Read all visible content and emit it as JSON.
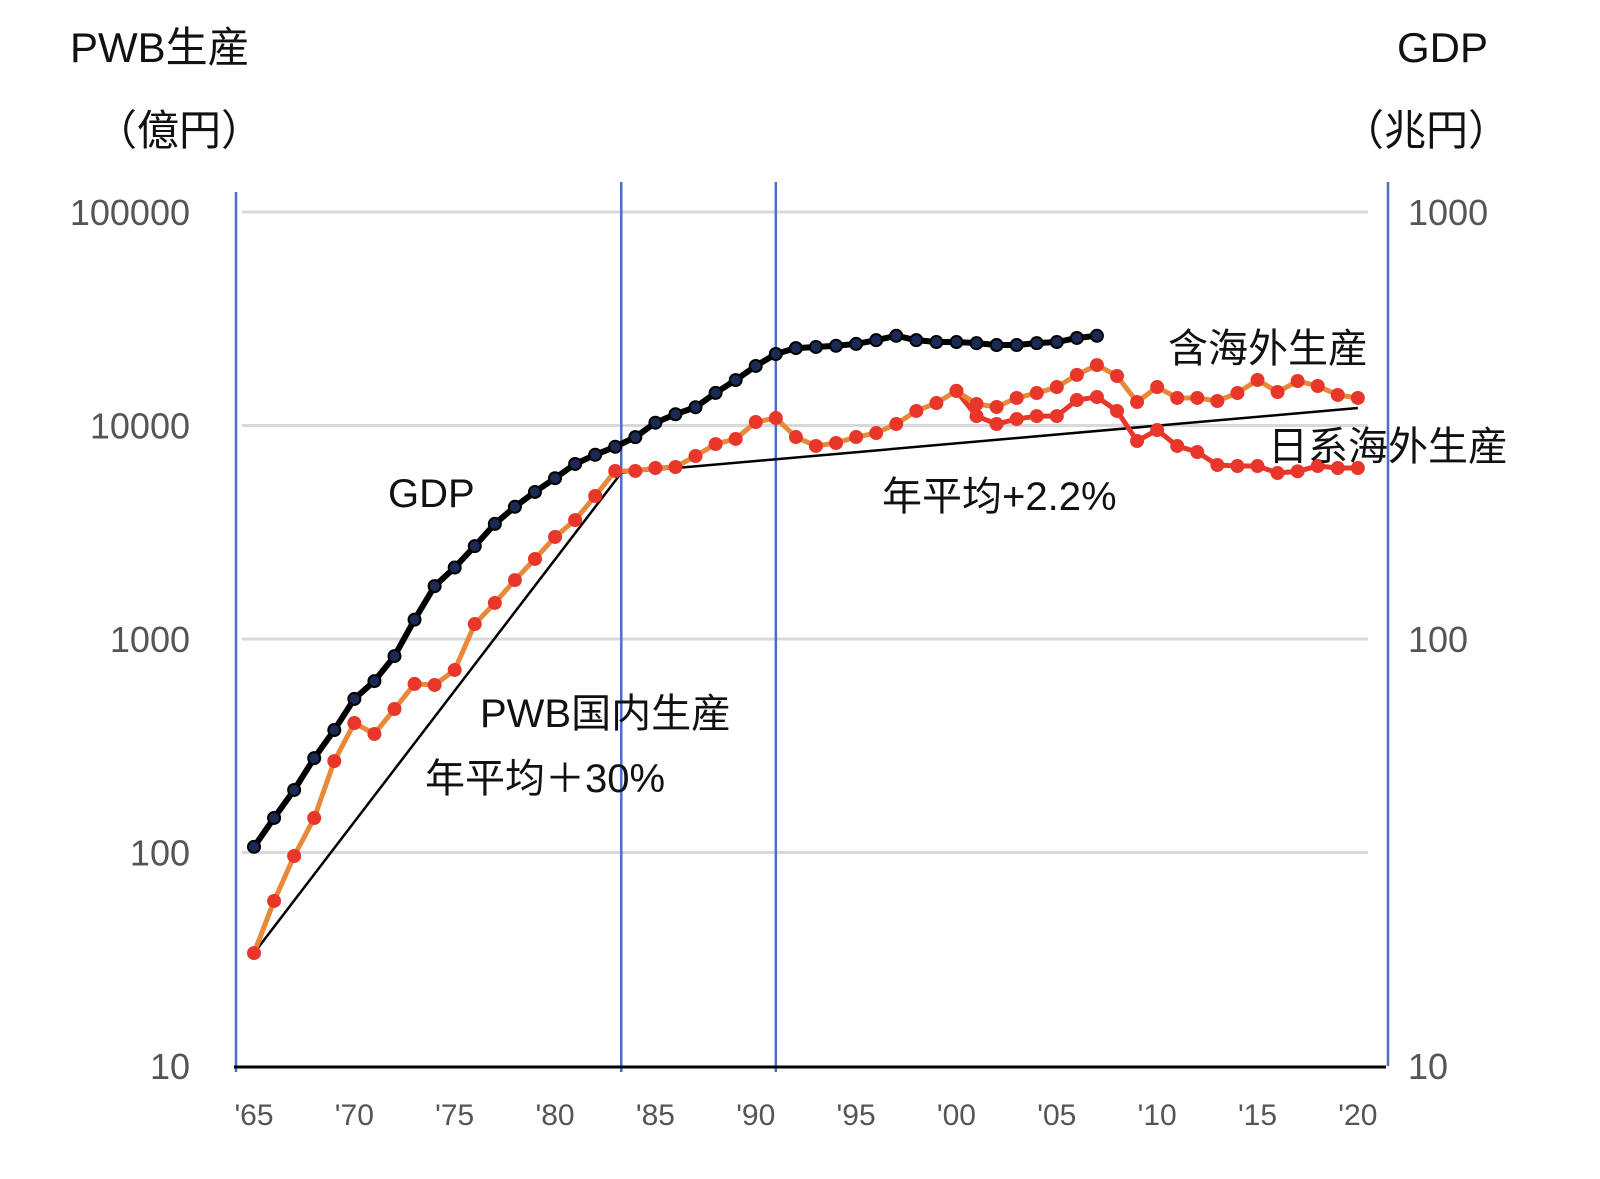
{
  "chart_data": {
    "type": "line",
    "title": "",
    "left_axis": {
      "label_line1": "PWB生産",
      "label_line2": "（億円）",
      "scale": "log",
      "range": [
        10,
        100000
      ],
      "ticks": [
        "100000",
        "10000",
        "1000",
        "100",
        "10"
      ]
    },
    "right_axis": {
      "label_line1": "GDP",
      "label_line2": "（兆円）",
      "scale": "log",
      "range": [
        10,
        1000
      ],
      "ticks": [
        "1000",
        "100",
        "10"
      ]
    },
    "x_axis": {
      "range": [
        1965,
        2020
      ],
      "ticks": [
        "'65",
        "'70",
        "'75",
        "'80",
        "'85",
        "'90",
        "'95",
        "'00",
        "'05",
        "'10",
        "'15",
        "'20"
      ],
      "tick_years": [
        1965,
        1970,
        1975,
        1980,
        1985,
        1990,
        1995,
        2000,
        2005,
        2010,
        2015,
        2020
      ]
    },
    "grid": true,
    "vertical_markers": [
      1983.3,
      1991
    ],
    "series": [
      {
        "name": "GDP",
        "axis": "right",
        "color": "#000000",
        "marker_color": "#1a2a55",
        "x": [
          1965,
          1966,
          1967,
          1968,
          1969,
          1970,
          1971,
          1972,
          1973,
          1974,
          1975,
          1976,
          1977,
          1978,
          1979,
          1980,
          1981,
          1982,
          1983,
          1984,
          1985,
          1986,
          1987,
          1988,
          1989,
          1990,
          1991,
          1992,
          1993,
          1994,
          1995,
          1996,
          1997,
          1998,
          1999,
          2000,
          2001,
          2002,
          2003,
          2004,
          2005,
          2006,
          2007
        ],
        "values": [
          32.6,
          38.1,
          44.3,
          52.6,
          61.2,
          72.4,
          79.7,
          91.2,
          111,
          133,
          147,
          165,
          186,
          204,
          221,
          238,
          257,
          270,
          282,
          297,
          321,
          336,
          349,
          377,
          404,
          436,
          465,
          480,
          483,
          486,
          491,
          501,
          513,
          501,
          496,
          496,
          493,
          488,
          488,
          493,
          496,
          507,
          513
        ]
      },
      {
        "name": "含海外生産",
        "axis": "left",
        "color": "#e8893a",
        "marker_color": "#e8372a",
        "x": [
          1965,
          1966,
          1967,
          1968,
          1969,
          1970,
          1971,
          1972,
          1973,
          1974,
          1975,
          1976,
          1977,
          1978,
          1979,
          1980,
          1981,
          1982,
          1983,
          1984,
          1985,
          1986,
          1987,
          1988,
          1989,
          1990,
          1991,
          1992,
          1993,
          1994,
          1995,
          1996,
          1997,
          1998,
          1999,
          2000,
          2001,
          2002,
          2003,
          2004,
          2005,
          2006,
          2007,
          2008,
          2009,
          2010,
          2011,
          2012,
          2013,
          2014,
          2015,
          2016,
          2017,
          2018,
          2019,
          2020
        ],
        "values": [
          33.8,
          59.3,
          96.3,
          145,
          268,
          404,
          359,
          470,
          616,
          609,
          716,
          1175,
          1475,
          1888,
          2371,
          3006,
          3606,
          4677,
          6124,
          6124,
          6324,
          6392,
          7194,
          8185,
          8650,
          10380,
          10840,
          8830,
          8020,
          8280,
          8830,
          9220,
          10160,
          11700,
          12740,
          14520,
          12610,
          12210,
          13460,
          14190,
          15140,
          17260,
          19190,
          17060,
          12880,
          15140,
          13460,
          13460,
          13020,
          14190,
          16340,
          14350,
          16150,
          15310,
          13900,
          13460
        ]
      },
      {
        "name": "日系海外生産",
        "axis": "left",
        "color": "#e8372a",
        "marker_color": "#e8372a",
        "x": [
          2000,
          2001,
          2002,
          2003,
          2004,
          2005,
          2006,
          2007,
          2008,
          2009,
          2010,
          2011,
          2012,
          2013,
          2014,
          2015,
          2016,
          2017,
          2018,
          2019,
          2020
        ],
        "values": [
          14520,
          11070,
          10160,
          10720,
          11070,
          11070,
          13160,
          13600,
          11700,
          8460,
          9520,
          8020,
          7510,
          6530,
          6460,
          6460,
          5990,
          6100,
          6460,
          6320,
          6320
        ]
      }
    ],
    "trend_lines": [
      {
        "name": "PWB国内生産 年平均＋30%",
        "x": [
          1965,
          1983.3
        ],
        "values": [
          33.8,
          6000
        ]
      },
      {
        "name": "年平均+2.2%",
        "x": [
          1983.3,
          2020
        ],
        "values": [
          6000,
          12080
        ]
      }
    ],
    "annotations": {
      "gdp": "GDP",
      "incl_overseas": "含海外生産",
      "japanese_overseas": "日系海外生産",
      "growth_recent": "年平均+2.2%",
      "domestic": "PWB国内生産",
      "growth_early": "年平均＋30%"
    }
  }
}
